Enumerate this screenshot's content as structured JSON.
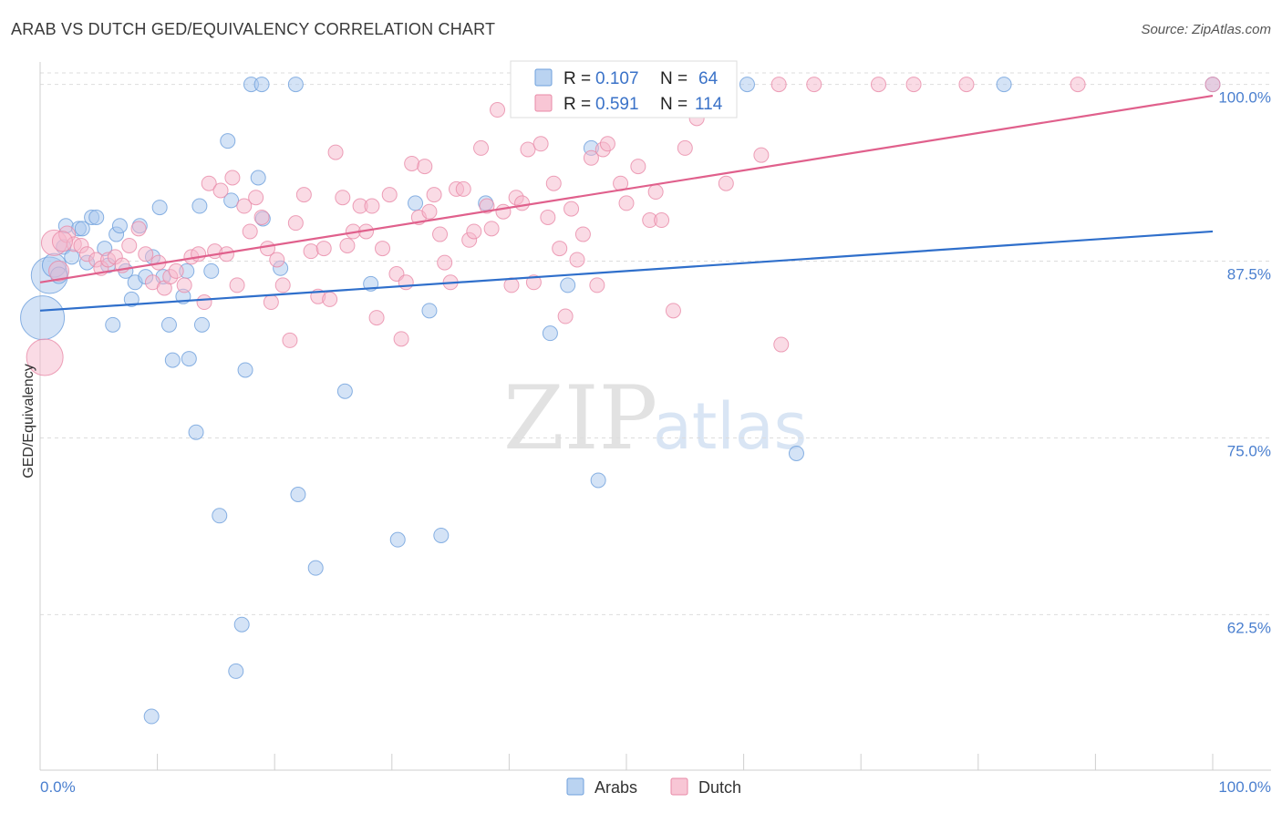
{
  "title": "ARAB VS DUTCH GED/EQUIVALENCY CORRELATION CHART",
  "source": "Source: ZipAtlas.com",
  "colors": {
    "arabs_fill": "#a9c8ee",
    "arabs_stroke": "#6d9fdc",
    "arabs_line": "#2f6fcb",
    "dutch_fill": "#f6b8cb",
    "dutch_stroke": "#e98aa7",
    "dutch_line": "#e0608c",
    "tick_label": "#4a7fcf",
    "grid": "#dddddd"
  },
  "legend": {
    "rows": [
      {
        "series": "Arabs",
        "r_label": "R = ",
        "r_value": "0.107",
        "n_label": "N = ",
        "n_value": "64"
      },
      {
        "series": "Dutch",
        "r_label": "R = ",
        "r_value": "0.591",
        "n_label": "N = ",
        "n_value": "114"
      }
    ]
  },
  "chart_data": {
    "type": "scatter",
    "title": "ARAB VS DUTCH GED/EQUIVALENCY CORRELATION CHART",
    "xlabel": "",
    "ylabel": "GED/Equivalency",
    "xlim": [
      0,
      100
    ],
    "ylim": [
      51.5,
      101.2
    ],
    "x_tick_labels": [
      "0.0%",
      "100.0%"
    ],
    "y_ticks": [
      62.5,
      75.0,
      87.5,
      100.0
    ],
    "y_tick_labels": [
      "62.5%",
      "75.0%",
      "87.5%",
      "100.0%"
    ],
    "grid": "horizontal dashed",
    "legend_position": "top-center",
    "series": [
      {
        "name": "Arabs",
        "trend": {
          "x0": 0,
          "y0": 84.0,
          "x1": 100,
          "y1": 89.6
        },
        "points": [
          [
            0.2,
            83.5,
            24
          ],
          [
            0.8,
            86.5,
            20
          ],
          [
            1.2,
            87.2,
            13
          ],
          [
            1.6,
            86.5,
            9
          ],
          [
            2.0,
            88.5,
            8
          ],
          [
            2.2,
            90.0,
            8
          ],
          [
            2.7,
            87.8,
            8
          ],
          [
            3.3,
            89.8,
            8
          ],
          [
            3.6,
            89.8,
            8
          ],
          [
            4.0,
            87.4,
            8
          ],
          [
            4.4,
            90.6,
            8
          ],
          [
            4.8,
            90.6,
            8
          ],
          [
            5.5,
            88.4,
            8
          ],
          [
            5.8,
            87.2,
            8
          ],
          [
            6.2,
            83.0,
            8
          ],
          [
            6.5,
            89.4,
            8
          ],
          [
            6.8,
            90.0,
            8
          ],
          [
            7.3,
            86.8,
            8
          ],
          [
            7.8,
            84.8,
            8
          ],
          [
            8.1,
            86.0,
            8
          ],
          [
            8.5,
            90.0,
            8
          ],
          [
            9.0,
            86.4,
            8
          ],
          [
            9.6,
            87.8,
            8
          ],
          [
            10.2,
            91.3,
            8
          ],
          [
            10.5,
            86.4,
            8
          ],
          [
            11.0,
            83.0,
            8
          ],
          [
            11.3,
            80.5,
            8
          ],
          [
            12.2,
            85.0,
            8
          ],
          [
            12.5,
            86.8,
            8
          ],
          [
            12.7,
            80.6,
            8
          ],
          [
            13.3,
            75.4,
            8
          ],
          [
            13.6,
            91.4,
            8
          ],
          [
            13.8,
            83.0,
            8
          ],
          [
            14.6,
            86.8,
            8
          ],
          [
            15.3,
            69.5,
            8
          ],
          [
            16.0,
            96.0,
            8
          ],
          [
            16.3,
            91.8,
            8
          ],
          [
            16.7,
            58.5,
            8
          ],
          [
            17.2,
            61.8,
            8
          ],
          [
            17.5,
            79.8,
            8
          ],
          [
            18.0,
            100.0,
            8
          ],
          [
            18.6,
            93.4,
            8
          ],
          [
            18.9,
            100.0,
            8
          ],
          [
            19.0,
            90.5,
            8
          ],
          [
            20.5,
            87.0,
            8
          ],
          [
            21.8,
            100.0,
            8
          ],
          [
            22.0,
            71.0,
            8
          ],
          [
            23.5,
            65.8,
            8
          ],
          [
            26.0,
            78.3,
            8
          ],
          [
            28.2,
            85.9,
            8
          ],
          [
            30.5,
            67.8,
            8
          ],
          [
            32.0,
            91.6,
            8
          ],
          [
            33.2,
            84.0,
            8
          ],
          [
            34.2,
            68.1,
            8
          ],
          [
            38.0,
            91.6,
            8
          ],
          [
            43.5,
            82.4,
            8
          ],
          [
            45.0,
            85.8,
            8
          ],
          [
            47.0,
            95.5,
            8
          ],
          [
            47.6,
            72.0,
            8
          ],
          [
            60.3,
            100.0,
            8
          ],
          [
            64.5,
            73.9,
            8
          ],
          [
            82.2,
            100.0,
            8
          ],
          [
            100.0,
            100.0,
            8
          ],
          [
            9.5,
            55.3,
            8
          ]
        ]
      },
      {
        "name": "Dutch",
        "trend": {
          "x0": 0,
          "y0": 86.0,
          "x1": 100,
          "y1": 99.2
        },
        "points": [
          [
            0.4,
            80.7,
            20
          ],
          [
            1.2,
            88.8,
            14
          ],
          [
            1.6,
            86.8,
            11
          ],
          [
            2.3,
            89.4,
            9
          ],
          [
            2.9,
            88.7,
            8
          ],
          [
            3.5,
            88.6,
            8
          ],
          [
            4.0,
            88.0,
            8
          ],
          [
            4.8,
            87.6,
            8
          ],
          [
            5.2,
            87.0,
            8
          ],
          [
            5.8,
            87.6,
            8
          ],
          [
            6.4,
            87.8,
            8
          ],
          [
            7.0,
            87.2,
            8
          ],
          [
            7.6,
            88.6,
            8
          ],
          [
            8.4,
            89.8,
            8
          ],
          [
            9.0,
            88.0,
            8
          ],
          [
            9.6,
            86.0,
            8
          ],
          [
            10.1,
            87.4,
            8
          ],
          [
            10.6,
            85.6,
            8
          ],
          [
            11.1,
            86.4,
            8
          ],
          [
            11.6,
            86.8,
            8
          ],
          [
            12.3,
            85.8,
            8
          ],
          [
            12.9,
            87.8,
            8
          ],
          [
            13.5,
            88.0,
            8
          ],
          [
            14.0,
            84.6,
            8
          ],
          [
            14.4,
            93.0,
            8
          ],
          [
            14.9,
            88.2,
            8
          ],
          [
            15.4,
            92.5,
            8
          ],
          [
            15.9,
            88.0,
            8
          ],
          [
            16.4,
            93.4,
            8
          ],
          [
            16.8,
            85.8,
            8
          ],
          [
            17.4,
            91.4,
            8
          ],
          [
            17.9,
            89.6,
            8
          ],
          [
            18.4,
            92.0,
            8
          ],
          [
            18.9,
            90.6,
            8
          ],
          [
            19.4,
            88.4,
            8
          ],
          [
            19.7,
            84.6,
            8
          ],
          [
            20.2,
            87.6,
            8
          ],
          [
            20.7,
            85.8,
            8
          ],
          [
            21.3,
            81.9,
            8
          ],
          [
            21.8,
            90.2,
            8
          ],
          [
            22.5,
            92.2,
            8
          ],
          [
            23.1,
            88.2,
            8
          ],
          [
            23.7,
            85.0,
            8
          ],
          [
            24.2,
            88.4,
            8
          ],
          [
            24.7,
            84.8,
            8
          ],
          [
            25.2,
            95.2,
            8
          ],
          [
            25.8,
            92.0,
            8
          ],
          [
            26.2,
            88.6,
            8
          ],
          [
            26.7,
            89.6,
            8
          ],
          [
            27.3,
            91.4,
            8
          ],
          [
            27.8,
            89.6,
            8
          ],
          [
            28.3,
            91.4,
            8
          ],
          [
            28.7,
            83.5,
            8
          ],
          [
            29.2,
            88.4,
            8
          ],
          [
            29.8,
            92.2,
            8
          ],
          [
            30.4,
            86.6,
            8
          ],
          [
            30.8,
            82.0,
            8
          ],
          [
            31.2,
            86.0,
            8
          ],
          [
            31.7,
            94.4,
            8
          ],
          [
            32.3,
            90.6,
            8
          ],
          [
            32.8,
            94.2,
            8
          ],
          [
            33.2,
            91.0,
            8
          ],
          [
            33.6,
            92.2,
            8
          ],
          [
            34.1,
            89.4,
            8
          ],
          [
            34.5,
            87.4,
            8
          ],
          [
            35.0,
            86.0,
            8
          ],
          [
            35.5,
            92.6,
            8
          ],
          [
            36.1,
            92.6,
            8
          ],
          [
            36.6,
            89.0,
            8
          ],
          [
            37.0,
            89.6,
            8
          ],
          [
            37.6,
            95.5,
            8
          ],
          [
            38.1,
            91.4,
            8
          ],
          [
            38.5,
            89.8,
            8
          ],
          [
            39.0,
            98.2,
            8
          ],
          [
            39.5,
            91.0,
            8
          ],
          [
            40.2,
            85.8,
            8
          ],
          [
            40.6,
            92.0,
            8
          ],
          [
            41.1,
            91.6,
            8
          ],
          [
            41.6,
            95.4,
            8
          ],
          [
            42.1,
            86.0,
            8
          ],
          [
            42.7,
            95.8,
            8
          ],
          [
            43.3,
            90.6,
            8
          ],
          [
            43.8,
            93.0,
            8
          ],
          [
            44.3,
            88.4,
            8
          ],
          [
            44.8,
            83.6,
            8
          ],
          [
            45.3,
            91.2,
            8
          ],
          [
            45.8,
            87.6,
            8
          ],
          [
            46.3,
            89.4,
            8
          ],
          [
            47.0,
            94.8,
            8
          ],
          [
            47.5,
            85.8,
            8
          ],
          [
            48.0,
            95.4,
            8
          ],
          [
            48.4,
            95.8,
            8
          ],
          [
            49.5,
            93.0,
            8
          ],
          [
            50.0,
            91.6,
            8
          ],
          [
            51.0,
            94.2,
            8
          ],
          [
            52.0,
            90.4,
            8
          ],
          [
            52.5,
            92.4,
            8
          ],
          [
            53.0,
            90.4,
            8
          ],
          [
            54.0,
            84.0,
            8
          ],
          [
            55.0,
            95.5,
            8
          ],
          [
            56.0,
            97.6,
            8
          ],
          [
            56.5,
            100.0,
            8
          ],
          [
            58.0,
            98.6,
            8
          ],
          [
            61.5,
            95.0,
            8
          ],
          [
            63.0,
            100.0,
            8
          ],
          [
            63.2,
            81.6,
            8
          ],
          [
            66.0,
            100.0,
            8
          ],
          [
            71.5,
            100.0,
            8
          ],
          [
            74.5,
            100.0,
            8
          ],
          [
            79.0,
            100.0,
            8
          ],
          [
            88.5,
            100.0,
            8
          ],
          [
            100.0,
            100.0,
            8
          ],
          [
            58.5,
            93.0,
            8
          ],
          [
            1.9,
            88.9,
            11
          ]
        ]
      }
    ]
  },
  "bottom_legend": [
    {
      "series": "Arabs",
      "label": "Arabs"
    },
    {
      "series": "Dutch",
      "label": "Dutch"
    }
  ],
  "watermark": {
    "zip": "ZIP",
    "atlas": "atlas"
  }
}
